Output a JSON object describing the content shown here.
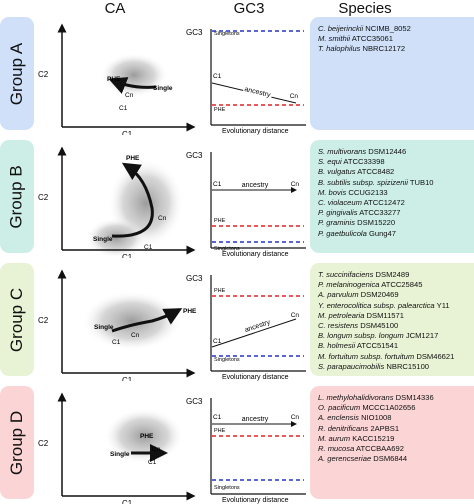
{
  "headers": {
    "ca": "CA",
    "gc3": "GC3",
    "species": "Species"
  },
  "colors": {
    "group_a": "#cfe0f8",
    "group_b": "#cdeee6",
    "group_c": "#e8f2d4",
    "group_d": "#fbd5d6",
    "phe_line": "#e02424",
    "singletons_line": "#2334c8"
  },
  "groups": [
    {
      "label": "Group A",
      "ca": {
        "x_axis": "C1",
        "y_axis": "C2",
        "labels": {
          "phe": "PHE",
          "single": "Single",
          "cn": "Cn",
          "c1": "C1"
        }
      },
      "gc3": {
        "y_axis": "GC3",
        "x_axis": "Evolutionary distance",
        "start_label": "C1",
        "end_label": "Cn",
        "arrow_label": "ancestry",
        "singletons_label": "Singletons",
        "phe_label": "PHE"
      },
      "species": [
        {
          "italic": "C. beijerinckii",
          "rest": " NCIMB_8052"
        },
        {
          "italic": "M. smithii",
          "rest": " ATCC35061"
        },
        {
          "italic": "T. halophilus",
          "rest": " NBRC12172"
        }
      ]
    },
    {
      "label": "Group B",
      "ca": {
        "x_axis": "C1",
        "y_axis": "C2",
        "labels": {
          "phe": "PHE",
          "single": "Single",
          "cn": "Cn",
          "c1": "C1"
        }
      },
      "gc3": {
        "y_axis": "GC3",
        "x_axis": "Evolutionary distance",
        "start_label": "C1",
        "end_label": "Cn",
        "arrow_label": "ancestry",
        "singletons_label": "Singletons",
        "phe_label": "PHE"
      },
      "species": [
        {
          "italic": "S. multivorans",
          "rest": " DSM12446"
        },
        {
          "italic": "S. equi",
          "rest": " ATCC33398"
        },
        {
          "italic": "B. vulgatus",
          "rest": " ATCC8482"
        },
        {
          "italic": "B. subtilis subsp. spizizenii",
          "rest": " TUB10"
        },
        {
          "italic": "M. bovis",
          "rest": " CCUG2133"
        },
        {
          "italic": "C. violaceum",
          "rest": " ATCC12472"
        },
        {
          "italic": "P. gingivalis",
          "rest": " ATCC33277"
        },
        {
          "italic": "P. graminis",
          "rest": " DSM15220"
        },
        {
          "italic": "P. gaetbulicola",
          "rest": " Gung47"
        }
      ]
    },
    {
      "label": "Group C",
      "ca": {
        "x_axis": "C1",
        "y_axis": "C2",
        "labels": {
          "phe": "PHE",
          "single": "Single",
          "cn": "Cn",
          "c1": "C1"
        }
      },
      "gc3": {
        "y_axis": "GC3",
        "x_axis": "Evolutionary distance",
        "start_label": "C1",
        "end_label": "Cn",
        "arrow_label": "ancestry",
        "singletons_label": "Singletons",
        "phe_label": "PHE"
      },
      "species": [
        {
          "italic": "T. succinifaciens",
          "rest": " DSM2489"
        },
        {
          "italic": "P. melaninogenica",
          "rest": " ATCC25845"
        },
        {
          "italic": "A. parvulum",
          "rest": " DSM20469"
        },
        {
          "italic": "Y. enterocolitica subsp. palearctica",
          "rest": " Y11"
        },
        {
          "italic": "M. petrolearia",
          "rest": " DSM11571"
        },
        {
          "italic": "C. resistens",
          "rest": " DSM45100"
        },
        {
          "italic": "B. longum subsp. longum",
          "rest": " JCM1217"
        },
        {
          "italic": "B. holmesii",
          "rest": " ATCC51541"
        },
        {
          "italic": "M. fortuitum subsp. fortuitum",
          "rest": " DSM46621"
        },
        {
          "italic": "S. parapaucimobilis",
          "rest": " NBRC15100"
        }
      ]
    },
    {
      "label": "Group D",
      "ca": {
        "x_axis": "C1",
        "y_axis": "C2",
        "labels": {
          "phe": "PHE",
          "single": "Single",
          "cn": "Cn",
          "c1": "C1"
        }
      },
      "gc3": {
        "y_axis": "GC3",
        "x_axis": "Evolutionary distance",
        "start_label": "C1",
        "end_label": "Cn",
        "arrow_label": "ancestry",
        "singletons_label": "Singletons",
        "phe_label": "PHE"
      },
      "species": [
        {
          "italic": "L. methylohalidivorans",
          "rest": " DSM14336"
        },
        {
          "italic": "O. pacificum",
          "rest": " MCCC1A02656"
        },
        {
          "italic": "A. enclensis",
          "rest": " NIO1008"
        },
        {
          "italic": "R. denitrificans",
          "rest": " 2APBS1"
        },
        {
          "italic": "M. aurum",
          "rest": " KACC15219"
        },
        {
          "italic": "R. mucosa",
          "rest": " ATCCBAA692"
        },
        {
          "italic": "A. gerencseriae",
          "rest": " DSM6844"
        }
      ]
    }
  ]
}
